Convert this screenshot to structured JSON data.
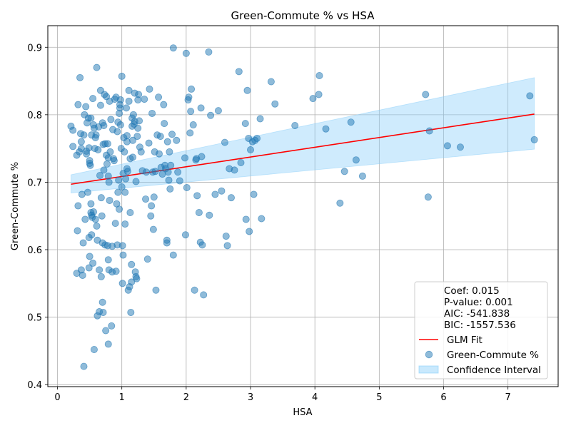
{
  "chart_data": {
    "type": "scatter",
    "title": "Green-Commute % vs HSA",
    "xlabel": "HSA",
    "ylabel": "Green-Commute %",
    "xlim": [
      -0.15,
      7.78
    ],
    "ylim": [
      0.397,
      0.932
    ],
    "xticks": [
      0,
      1,
      2,
      3,
      4,
      5,
      6,
      7
    ],
    "yticks": [
      0.4,
      0.5,
      0.6,
      0.7,
      0.8,
      0.9
    ],
    "grid": true,
    "legend_position": "lower-right",
    "stats": [
      "Coef: 0.015",
      "P-value: 0.001",
      "AIC: -541.838",
      "BIC: -1557.536"
    ],
    "colors": {
      "scatter": "#1f77b4",
      "fit": "#ff0000",
      "band": "#87cefa"
    },
    "series": [
      {
        "name": "Green-Commute %",
        "kind": "scatter",
        "points": [
          [
            0.21,
            0.783
          ],
          [
            0.24,
            0.753
          ],
          [
            0.24,
            0.777
          ],
          [
            0.3,
            0.74
          ],
          [
            0.3,
            0.565
          ],
          [
            0.31,
            0.628
          ],
          [
            0.32,
            0.815
          ],
          [
            0.32,
            0.665
          ],
          [
            0.34,
            0.745
          ],
          [
            0.35,
            0.855
          ],
          [
            0.36,
            0.772
          ],
          [
            0.37,
            0.76
          ],
          [
            0.37,
            0.75
          ],
          [
            0.37,
            0.57
          ],
          [
            0.38,
            0.682
          ],
          [
            0.39,
            0.562
          ],
          [
            0.4,
            0.61
          ],
          [
            0.41,
            0.77
          ],
          [
            0.41,
            0.427
          ],
          [
            0.42,
            0.8
          ],
          [
            0.43,
            0.645
          ],
          [
            0.44,
            0.812
          ],
          [
            0.45,
            0.742
          ],
          [
            0.45,
            0.746
          ],
          [
            0.46,
            0.788
          ],
          [
            0.47,
            0.685
          ],
          [
            0.48,
            0.795
          ],
          [
            0.49,
            0.751
          ],
          [
            0.49,
            0.618
          ],
          [
            0.49,
            0.573
          ],
          [
            0.5,
            0.728
          ],
          [
            0.5,
            0.732
          ],
          [
            0.5,
            0.59
          ],
          [
            0.51,
            0.725
          ],
          [
            0.52,
            0.795
          ],
          [
            0.52,
            0.655
          ],
          [
            0.52,
            0.668
          ],
          [
            0.53,
            0.77
          ],
          [
            0.53,
            0.622
          ],
          [
            0.53,
            0.651
          ],
          [
            0.54,
            0.648
          ],
          [
            0.55,
            0.58
          ],
          [
            0.55,
            0.824
          ],
          [
            0.56,
            0.785
          ],
          [
            0.56,
            0.656
          ],
          [
            0.57,
            0.78
          ],
          [
            0.57,
            0.452
          ],
          [
            0.58,
            0.75
          ],
          [
            0.59,
            0.645
          ],
          [
            0.59,
            0.766
          ],
          [
            0.6,
            0.77
          ],
          [
            0.61,
            0.635
          ],
          [
            0.61,
            0.87
          ],
          [
            0.62,
            0.614
          ],
          [
            0.62,
            0.502
          ],
          [
            0.63,
            0.748
          ],
          [
            0.64,
            0.782
          ],
          [
            0.65,
            0.57
          ],
          [
            0.65,
            0.508
          ],
          [
            0.66,
            0.71
          ],
          [
            0.67,
            0.836
          ],
          [
            0.67,
            0.814
          ],
          [
            0.68,
            0.677
          ],
          [
            0.68,
            0.56
          ],
          [
            0.69,
            0.65
          ],
          [
            0.7,
            0.788
          ],
          [
            0.7,
            0.522
          ],
          [
            0.7,
            0.61
          ],
          [
            0.71,
            0.756
          ],
          [
            0.71,
            0.507
          ],
          [
            0.72,
            0.784
          ],
          [
            0.72,
            0.718
          ],
          [
            0.73,
            0.83
          ],
          [
            0.74,
            0.757
          ],
          [
            0.74,
            0.607
          ],
          [
            0.75,
            0.48
          ],
          [
            0.76,
            0.827
          ],
          [
            0.76,
            0.74
          ],
          [
            0.77,
            0.727
          ],
          [
            0.78,
            0.757
          ],
          [
            0.78,
            0.606
          ],
          [
            0.79,
            0.46
          ],
          [
            0.79,
            0.709
          ],
          [
            0.79,
            0.585
          ],
          [
            0.79,
            0.736
          ],
          [
            0.8,
            0.57
          ],
          [
            0.8,
            0.7
          ],
          [
            0.81,
            0.673
          ],
          [
            0.81,
            0.82
          ],
          [
            0.82,
            0.745
          ],
          [
            0.83,
            0.793
          ],
          [
            0.84,
            0.487
          ],
          [
            0.85,
            0.567
          ],
          [
            0.85,
            0.605
          ],
          [
            0.86,
            0.778
          ],
          [
            0.87,
            0.735
          ],
          [
            0.88,
            0.732
          ],
          [
            0.89,
            0.823
          ],
          [
            0.9,
            0.639
          ],
          [
            0.91,
            0.568
          ],
          [
            0.91,
            0.826
          ],
          [
            0.92,
            0.668
          ],
          [
            0.93,
            0.607
          ],
          [
            0.93,
            0.775
          ],
          [
            0.94,
            0.789
          ],
          [
            0.94,
            0.685
          ],
          [
            0.95,
            0.703
          ],
          [
            0.96,
            0.66
          ],
          [
            0.96,
            0.802
          ],
          [
            0.97,
            0.81
          ],
          [
            0.97,
            0.815
          ],
          [
            0.98,
            0.822
          ],
          [
            0.98,
            0.785
          ],
          [
            0.99,
            0.75
          ],
          [
            1.0,
            0.857
          ],
          [
            1.0,
            0.693
          ],
          [
            1.01,
            0.55
          ],
          [
            1.01,
            0.606
          ],
          [
            1.02,
            0.713
          ],
          [
            1.02,
            0.592
          ],
          [
            1.03,
            0.766
          ],
          [
            1.04,
            0.745
          ],
          [
            1.05,
            0.685
          ],
          [
            1.05,
            0.638
          ],
          [
            1.06,
            0.705
          ],
          [
            1.07,
            0.81
          ],
          [
            1.08,
            0.769
          ],
          [
            1.08,
            0.72
          ],
          [
            1.08,
            0.76
          ],
          [
            1.09,
            0.716
          ],
          [
            1.1,
            0.54
          ],
          [
            1.11,
            0.82
          ],
          [
            1.11,
            0.836
          ],
          [
            1.12,
            0.545
          ],
          [
            1.13,
            0.735
          ],
          [
            1.13,
            0.655
          ],
          [
            1.14,
            0.507
          ],
          [
            1.15,
            0.578
          ],
          [
            1.15,
            0.552
          ],
          [
            1.16,
            0.783
          ],
          [
            1.16,
            0.795
          ],
          [
            1.17,
            0.737
          ],
          [
            1.17,
            0.762
          ],
          [
            1.18,
            0.8
          ],
          [
            1.19,
            0.786
          ],
          [
            1.2,
            0.79
          ],
          [
            1.2,
            0.832
          ],
          [
            1.21,
            0.567
          ],
          [
            1.22,
            0.56
          ],
          [
            1.22,
            0.701
          ],
          [
            1.23,
            0.557
          ],
          [
            1.24,
            0.768
          ],
          [
            1.25,
            0.822
          ],
          [
            1.25,
            0.78
          ],
          [
            1.26,
            0.83
          ],
          [
            1.27,
            0.791
          ],
          [
            1.28,
            0.752
          ],
          [
            1.3,
            0.745
          ],
          [
            1.32,
            0.717
          ],
          [
            1.35,
            0.823
          ],
          [
            1.37,
            0.675
          ],
          [
            1.38,
            0.715
          ],
          [
            1.4,
            0.586
          ],
          [
            1.42,
            0.758
          ],
          [
            1.43,
            0.838
          ],
          [
            1.45,
            0.65
          ],
          [
            1.46,
            0.665
          ],
          [
            1.47,
            0.802
          ],
          [
            1.48,
            0.715
          ],
          [
            1.49,
            0.63
          ],
          [
            1.5,
            0.678
          ],
          [
            1.51,
            0.745
          ],
          [
            1.52,
            0.716
          ],
          [
            1.53,
            0.54
          ],
          [
            1.55,
            0.77
          ],
          [
            1.57,
            0.826
          ],
          [
            1.58,
            0.742
          ],
          [
            1.6,
            0.768
          ],
          [
            1.61,
            0.722
          ],
          [
            1.63,
            0.712
          ],
          [
            1.65,
            0.815
          ],
          [
            1.66,
            0.787
          ],
          [
            1.67,
            0.725
          ],
          [
            1.68,
            0.72
          ],
          [
            1.7,
            0.614
          ],
          [
            1.7,
            0.61
          ],
          [
            1.71,
            0.76
          ],
          [
            1.72,
            0.715
          ],
          [
            1.73,
            0.703
          ],
          [
            1.74,
            0.745
          ],
          [
            1.75,
            0.69
          ],
          [
            1.76,
            0.725
          ],
          [
            1.78,
            0.771
          ],
          [
            1.8,
            0.592
          ],
          [
            1.8,
            0.899
          ],
          [
            1.85,
            0.762
          ],
          [
            1.87,
            0.715
          ],
          [
            1.9,
            0.702
          ],
          [
            1.98,
            0.736
          ],
          [
            1.99,
            0.622
          ],
          [
            2.0,
            0.891
          ],
          [
            2.01,
            0.692
          ],
          [
            2.03,
            0.822
          ],
          [
            2.04,
            0.826
          ],
          [
            2.06,
            0.773
          ],
          [
            2.07,
            0.805
          ],
          [
            2.08,
            0.838
          ],
          [
            2.11,
            0.785
          ],
          [
            2.13,
            0.54
          ],
          [
            2.15,
            0.733
          ],
          [
            2.16,
            0.735
          ],
          [
            2.17,
            0.68
          ],
          [
            2.2,
            0.655
          ],
          [
            2.22,
            0.611
          ],
          [
            2.23,
            0.81
          ],
          [
            2.24,
            0.738
          ],
          [
            2.25,
            0.607
          ],
          [
            2.27,
            0.533
          ],
          [
            2.35,
            0.893
          ],
          [
            2.36,
            0.651
          ],
          [
            2.38,
            0.799
          ],
          [
            2.45,
            0.682
          ],
          [
            2.5,
            0.806
          ],
          [
            2.55,
            0.687
          ],
          [
            2.6,
            0.759
          ],
          [
            2.62,
            0.62
          ],
          [
            2.64,
            0.606
          ],
          [
            2.67,
            0.72
          ],
          [
            2.7,
            0.677
          ],
          [
            2.75,
            0.718
          ],
          [
            2.82,
            0.864
          ],
          [
            2.85,
            0.729
          ],
          [
            2.92,
            0.787
          ],
          [
            2.93,
            0.645
          ],
          [
            2.95,
            0.836
          ],
          [
            2.97,
            0.765
          ],
          [
            2.98,
            0.627
          ],
          [
            3.0,
            0.748
          ],
          [
            3.03,
            0.76
          ],
          [
            3.05,
            0.682
          ],
          [
            3.07,
            0.762
          ],
          [
            3.1,
            0.765
          ],
          [
            3.15,
            0.794
          ],
          [
            3.17,
            0.646
          ],
          [
            3.32,
            0.849
          ],
          [
            3.38,
            0.816
          ],
          [
            3.69,
            0.784
          ],
          [
            3.97,
            0.824
          ],
          [
            4.06,
            0.83
          ],
          [
            4.07,
            0.858
          ],
          [
            4.17,
            0.779
          ],
          [
            4.39,
            0.669
          ],
          [
            4.46,
            0.716
          ],
          [
            4.56,
            0.789
          ],
          [
            4.64,
            0.733
          ],
          [
            4.74,
            0.709
          ],
          [
            5.72,
            0.83
          ],
          [
            5.76,
            0.678
          ],
          [
            5.78,
            0.776
          ],
          [
            6.06,
            0.754
          ],
          [
            6.26,
            0.752
          ],
          [
            7.34,
            0.828
          ],
          [
            7.41,
            0.763
          ]
        ]
      },
      {
        "name": "GLM Fit",
        "kind": "line",
        "x": [
          0.21,
          7.41
        ],
        "y": [
          0.697,
          0.801
        ]
      },
      {
        "name": "Confidence Interval",
        "kind": "band",
        "x": [
          0.21,
          7.41
        ],
        "lower": [
          0.684,
          0.749
        ],
        "upper": [
          0.711,
          0.855
        ]
      }
    ]
  }
}
